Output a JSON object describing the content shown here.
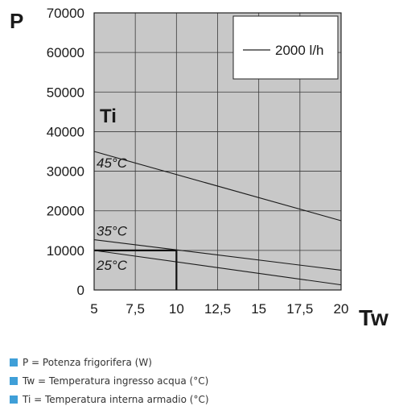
{
  "chart_data": {
    "type": "line",
    "y_axis_letter": "P",
    "x_axis_letter": "Tw",
    "x_ticks": [
      "5",
      "7,5",
      "10",
      "12,5",
      "15",
      "17,5",
      "20"
    ],
    "y_ticks": [
      "0",
      "10000",
      "20000",
      "30000",
      "40000",
      "50000",
      "60000",
      "70000"
    ],
    "xlim": [
      5,
      20
    ],
    "ylim": [
      0,
      70000
    ],
    "grid": true,
    "plot_background": "#c8c8c8",
    "panel_label": "Ti",
    "flow_legend": "2000 l/h",
    "series": [
      {
        "name": "45°C",
        "x": [
          5,
          20
        ],
        "y": [
          35000,
          17500
        ]
      },
      {
        "name": "35°C",
        "x": [
          5,
          20
        ],
        "y": [
          12700,
          5000
        ]
      },
      {
        "name": "25°C",
        "x": [
          5,
          20
        ],
        "y": [
          10000,
          1300
        ]
      }
    ],
    "example_marker": {
      "x": 10,
      "y": 10000
    }
  },
  "legend": {
    "items": [
      {
        "text": "P = Potenza frigorifera (W)"
      },
      {
        "text": "Tw = Temperatura ingresso acqua (°C)"
      },
      {
        "text": "Ti = Temperatura interna armadio (°C)"
      }
    ],
    "swatch_color": "#3f9fd8"
  }
}
